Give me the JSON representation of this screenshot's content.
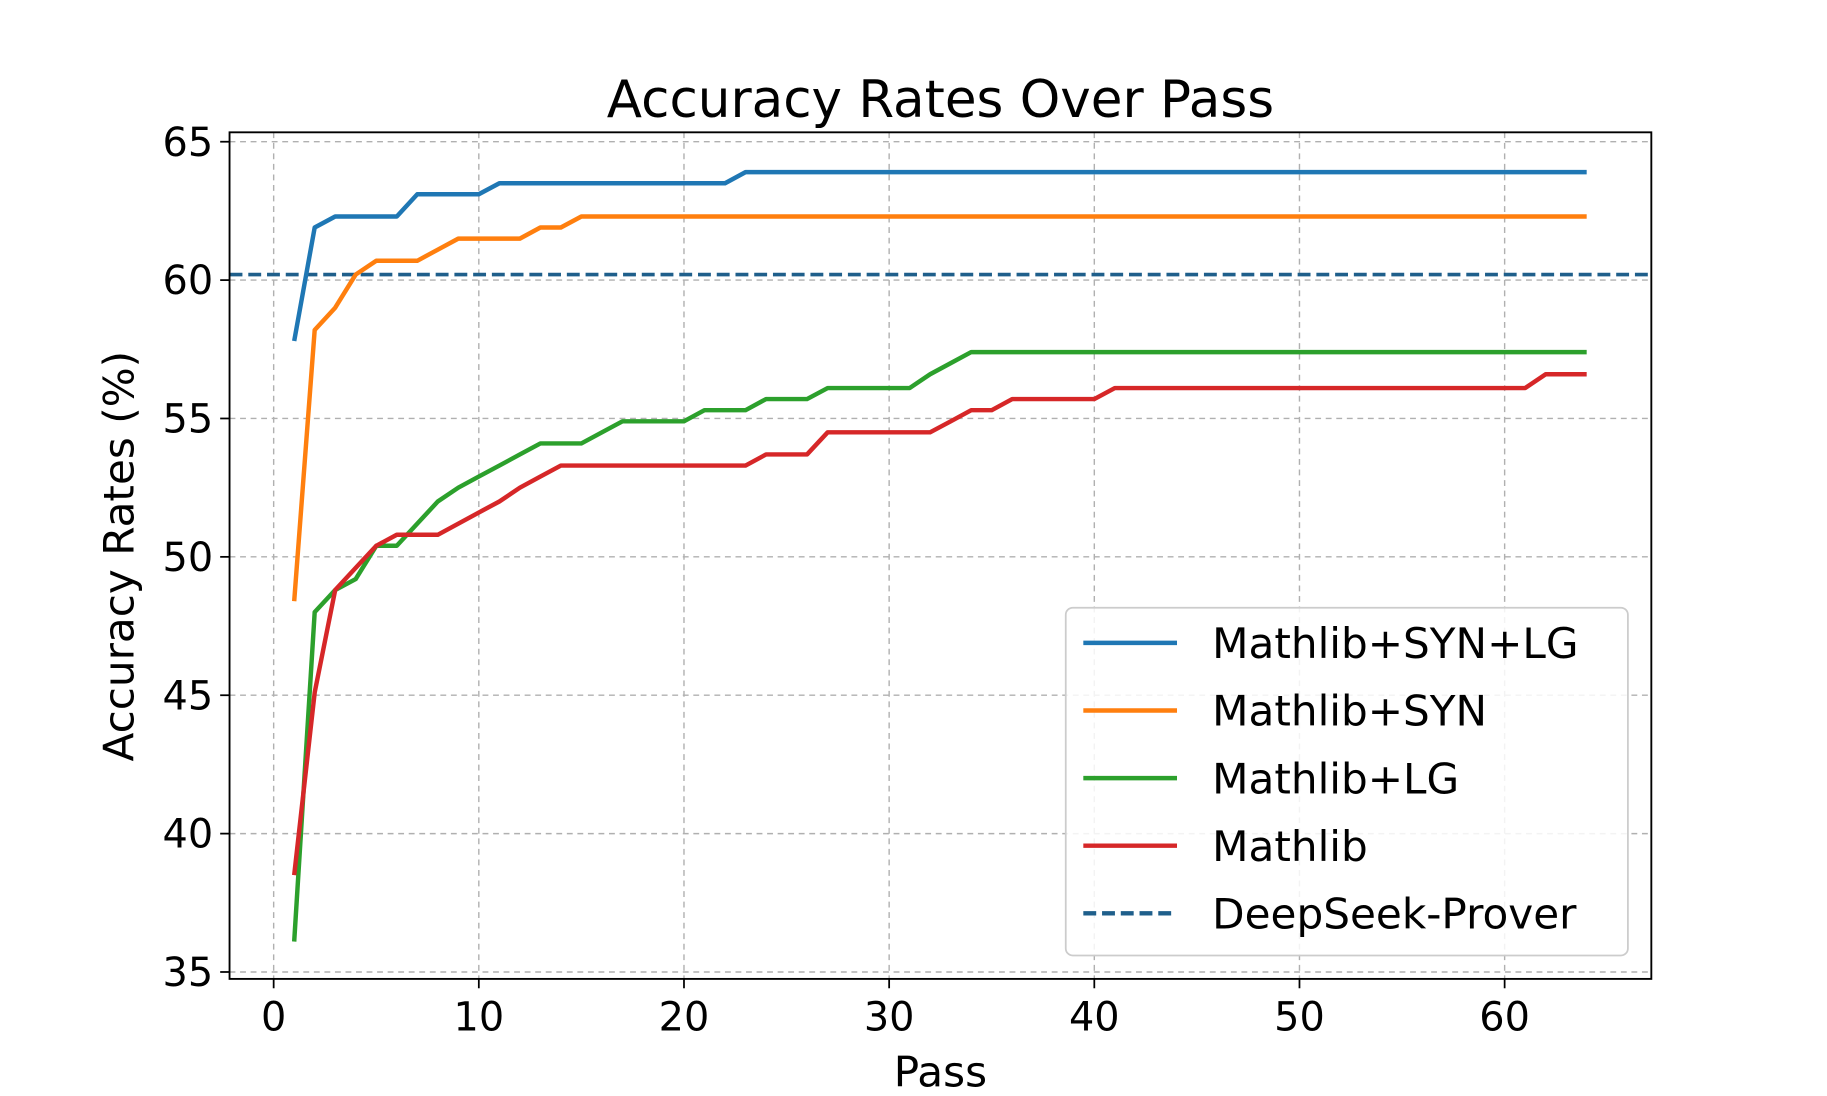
{
  "chart_data": {
    "type": "line",
    "title": "Accuracy Rates Over Pass",
    "xlabel": "Pass",
    "ylabel": "Accuracy Rates (%)",
    "xlim": [
      -2.15,
      67.15
    ],
    "ylim": [
      34.75,
      65.34
    ],
    "xticks": [
      0,
      10,
      20,
      30,
      40,
      50,
      60
    ],
    "yticks": [
      35,
      40,
      45,
      50,
      55,
      60,
      65
    ],
    "grid": true,
    "legend_position": "lower-right",
    "x": [
      1,
      2,
      3,
      4,
      5,
      6,
      7,
      8,
      9,
      10,
      11,
      12,
      13,
      14,
      15,
      16,
      17,
      18,
      19,
      20,
      21,
      22,
      23,
      24,
      25,
      26,
      27,
      28,
      29,
      30,
      31,
      32,
      33,
      34,
      35,
      36,
      37,
      38,
      39,
      40,
      41,
      42,
      43,
      44,
      45,
      46,
      47,
      48,
      49,
      50,
      51,
      52,
      53,
      54,
      55,
      56,
      57,
      58,
      59,
      60,
      61,
      62,
      63,
      64
    ],
    "series": [
      {
        "name": "Mathlib+SYN+LG",
        "color": "#1f77b4",
        "style": "solid",
        "values": [
          57.8,
          61.9,
          62.3,
          62.3,
          62.3,
          62.3,
          63.1,
          63.1,
          63.1,
          63.1,
          63.5,
          63.5,
          63.5,
          63.5,
          63.5,
          63.5,
          63.5,
          63.5,
          63.5,
          63.5,
          63.5,
          63.5,
          63.9,
          63.9,
          63.9,
          63.9,
          63.9,
          63.9,
          63.9,
          63.9,
          63.9,
          63.9,
          63.9,
          63.9,
          63.9,
          63.9,
          63.9,
          63.9,
          63.9,
          63.9,
          63.9,
          63.9,
          63.9,
          63.9,
          63.9,
          63.9,
          63.9,
          63.9,
          63.9,
          63.9,
          63.9,
          63.9,
          63.9,
          63.9,
          63.9,
          63.9,
          63.9,
          63.9,
          63.9,
          63.9,
          63.9,
          63.9,
          63.9,
          63.9
        ]
      },
      {
        "name": "Mathlib+SYN",
        "color": "#ff7f0e",
        "style": "solid",
        "values": [
          48.4,
          58.2,
          59.0,
          60.2,
          60.7,
          60.7,
          60.7,
          61.1,
          61.5,
          61.5,
          61.5,
          61.5,
          61.9,
          61.9,
          62.3,
          62.3,
          62.3,
          62.3,
          62.3,
          62.3,
          62.3,
          62.3,
          62.3,
          62.3,
          62.3,
          62.3,
          62.3,
          62.3,
          62.3,
          62.3,
          62.3,
          62.3,
          62.3,
          62.3,
          62.3,
          62.3,
          62.3,
          62.3,
          62.3,
          62.3,
          62.3,
          62.3,
          62.3,
          62.3,
          62.3,
          62.3,
          62.3,
          62.3,
          62.3,
          62.3,
          62.3,
          62.3,
          62.3,
          62.3,
          62.3,
          62.3,
          62.3,
          62.3,
          62.3,
          62.3,
          62.3,
          62.3,
          62.3,
          62.3
        ]
      },
      {
        "name": "Mathlib+LG",
        "color": "#2ca02c",
        "style": "solid",
        "values": [
          36.1,
          48.0,
          48.8,
          49.2,
          50.4,
          50.4,
          51.2,
          52.0,
          52.5,
          52.9,
          53.3,
          53.7,
          54.1,
          54.1,
          54.1,
          54.5,
          54.9,
          54.9,
          54.9,
          54.9,
          55.3,
          55.3,
          55.3,
          55.7,
          55.7,
          55.7,
          56.1,
          56.1,
          56.1,
          56.1,
          56.1,
          56.6,
          57.0,
          57.4,
          57.4,
          57.4,
          57.4,
          57.4,
          57.4,
          57.4,
          57.4,
          57.4,
          57.4,
          57.4,
          57.4,
          57.4,
          57.4,
          57.4,
          57.4,
          57.4,
          57.4,
          57.4,
          57.4,
          57.4,
          57.4,
          57.4,
          57.4,
          57.4,
          57.4,
          57.4,
          57.4,
          57.4,
          57.4,
          57.4
        ]
      },
      {
        "name": "Mathlib",
        "color": "#d62728",
        "style": "solid",
        "values": [
          38.5,
          45.1,
          48.8,
          49.6,
          50.4,
          50.8,
          50.8,
          50.8,
          51.2,
          51.6,
          52.0,
          52.5,
          52.9,
          53.3,
          53.3,
          53.3,
          53.3,
          53.3,
          53.3,
          53.3,
          53.3,
          53.3,
          53.3,
          53.7,
          53.7,
          53.7,
          54.5,
          54.5,
          54.5,
          54.5,
          54.5,
          54.5,
          54.9,
          55.3,
          55.3,
          55.7,
          55.7,
          55.7,
          55.7,
          55.7,
          56.1,
          56.1,
          56.1,
          56.1,
          56.1,
          56.1,
          56.1,
          56.1,
          56.1,
          56.1,
          56.1,
          56.1,
          56.1,
          56.1,
          56.1,
          56.1,
          56.1,
          56.1,
          56.1,
          56.1,
          56.1,
          56.6,
          56.6,
          56.6
        ]
      }
    ],
    "reference_lines": [
      {
        "name": "DeepSeek-Prover",
        "y": 60.2,
        "color": "#1f5f8b",
        "style": "dashed"
      }
    ]
  }
}
